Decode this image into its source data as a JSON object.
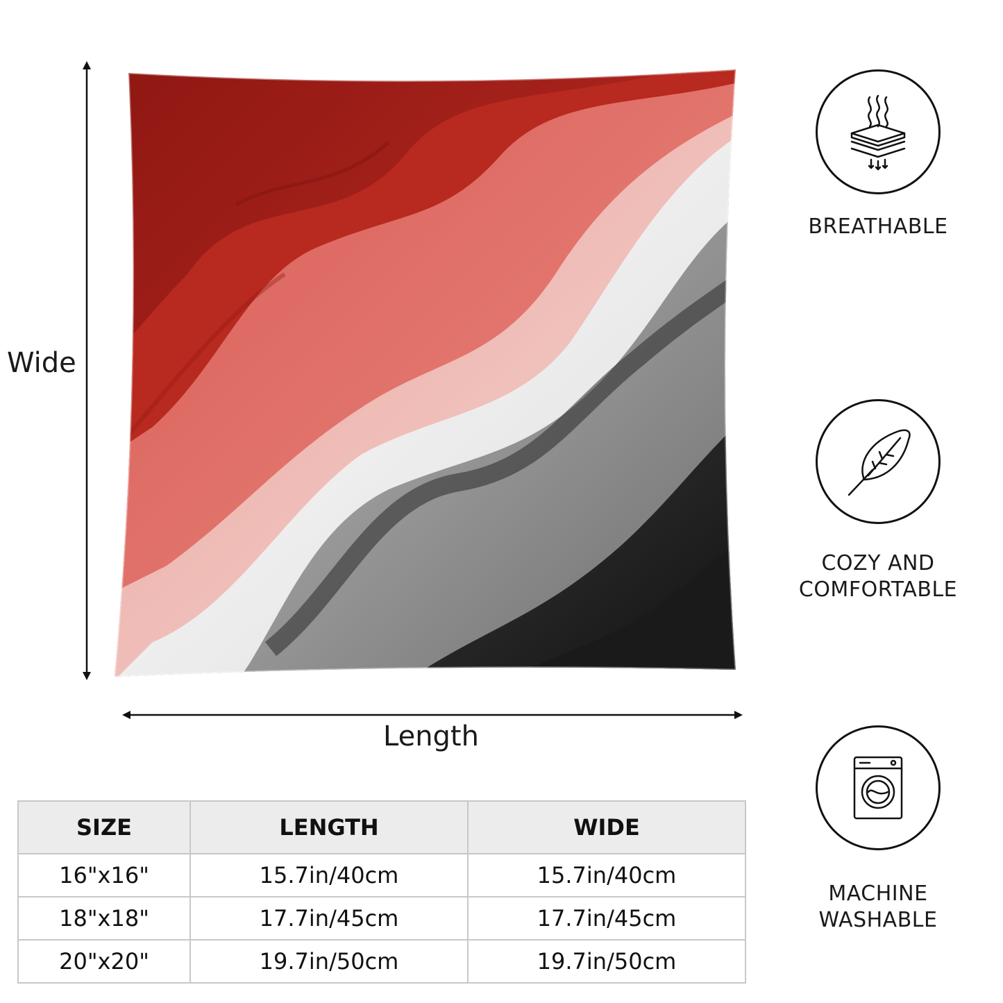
{
  "dimensions": {
    "wide_label": "Wide",
    "length_label": "Length"
  },
  "features": [
    {
      "icon": "breathable-icon",
      "label": "BREATHABLE"
    },
    {
      "icon": "feather-icon",
      "label_lines": [
        "COZY AND",
        "COMFORTABLE"
      ]
    },
    {
      "icon": "washing-machine-icon",
      "label_lines": [
        "MACHINE",
        "WASHABLE"
      ]
    }
  ],
  "size_table": {
    "headers": [
      "SIZE",
      "LENGTH",
      "WIDE"
    ],
    "rows": [
      [
        "16\"x16\"",
        "15.7in/40cm",
        "15.7in/40cm"
      ],
      [
        "18\"x18\"",
        "17.7in/45cm",
        "17.7in/45cm"
      ],
      [
        "20\"x20\"",
        "19.7in/50cm",
        "19.7in/50cm"
      ]
    ]
  },
  "colors": {
    "pillow_red": "#a8201a",
    "pillow_coral": "#e57a73",
    "pillow_white": "#f2f2f2",
    "pillow_gray": "#8a8a8a",
    "pillow_black": "#1c1c1c"
  }
}
